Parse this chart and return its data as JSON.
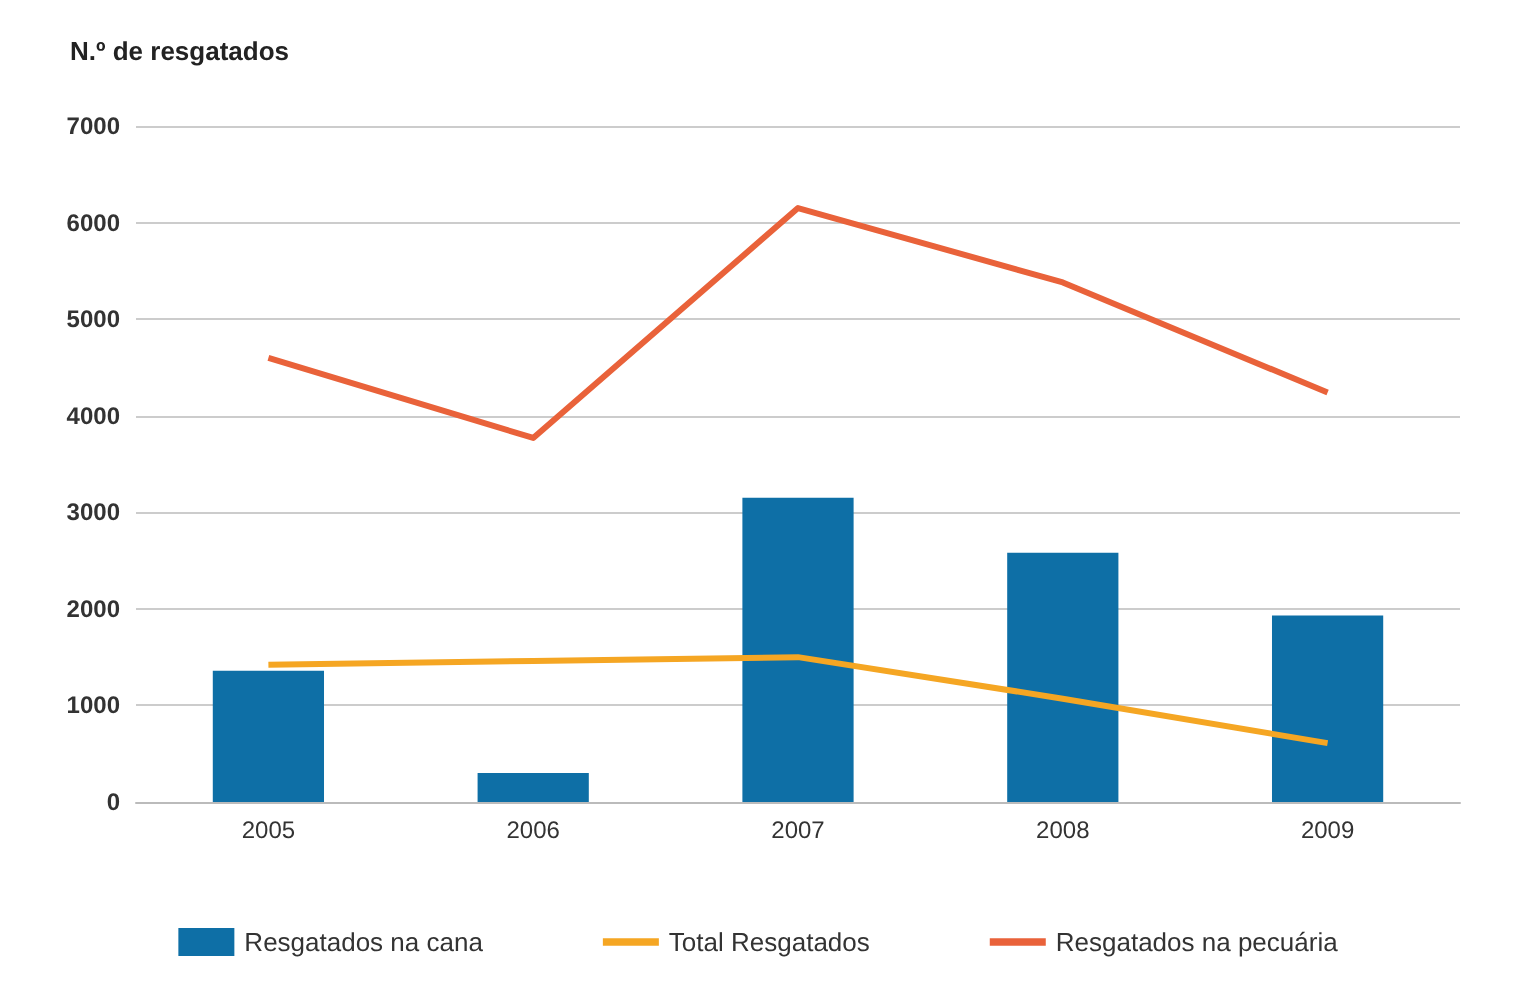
{
  "chart_data": {
    "type": "bar",
    "ylabel": "N.º de resgatados",
    "categories": [
      "2005",
      "2006",
      "2007",
      "2008",
      "2009"
    ],
    "series": [
      {
        "name": "Resgatados na cana",
        "color": "#0e6fa6",
        "values": [
          1360,
          300,
          3150,
          2580,
          1930
        ]
      },
      {
        "name": "Total Resgatados",
        "type": "line",
        "color": "#f5a623",
        "values": [
          1420,
          1460,
          1500,
          1070,
          610
        ]
      },
      {
        "name": "Resgatados na pecuária",
        "type": "line",
        "color": "#e9623a",
        "values": [
          4600,
          3770,
          6150,
          5380,
          4240
        ]
      }
    ],
    "ylim": [
      0,
      7000
    ],
    "yticks": [
      0,
      1000,
      2000,
      3000,
      4000,
      5000,
      6000,
      7000
    ],
    "grid": "y",
    "legend": "bottom",
    "marker": "none"
  }
}
